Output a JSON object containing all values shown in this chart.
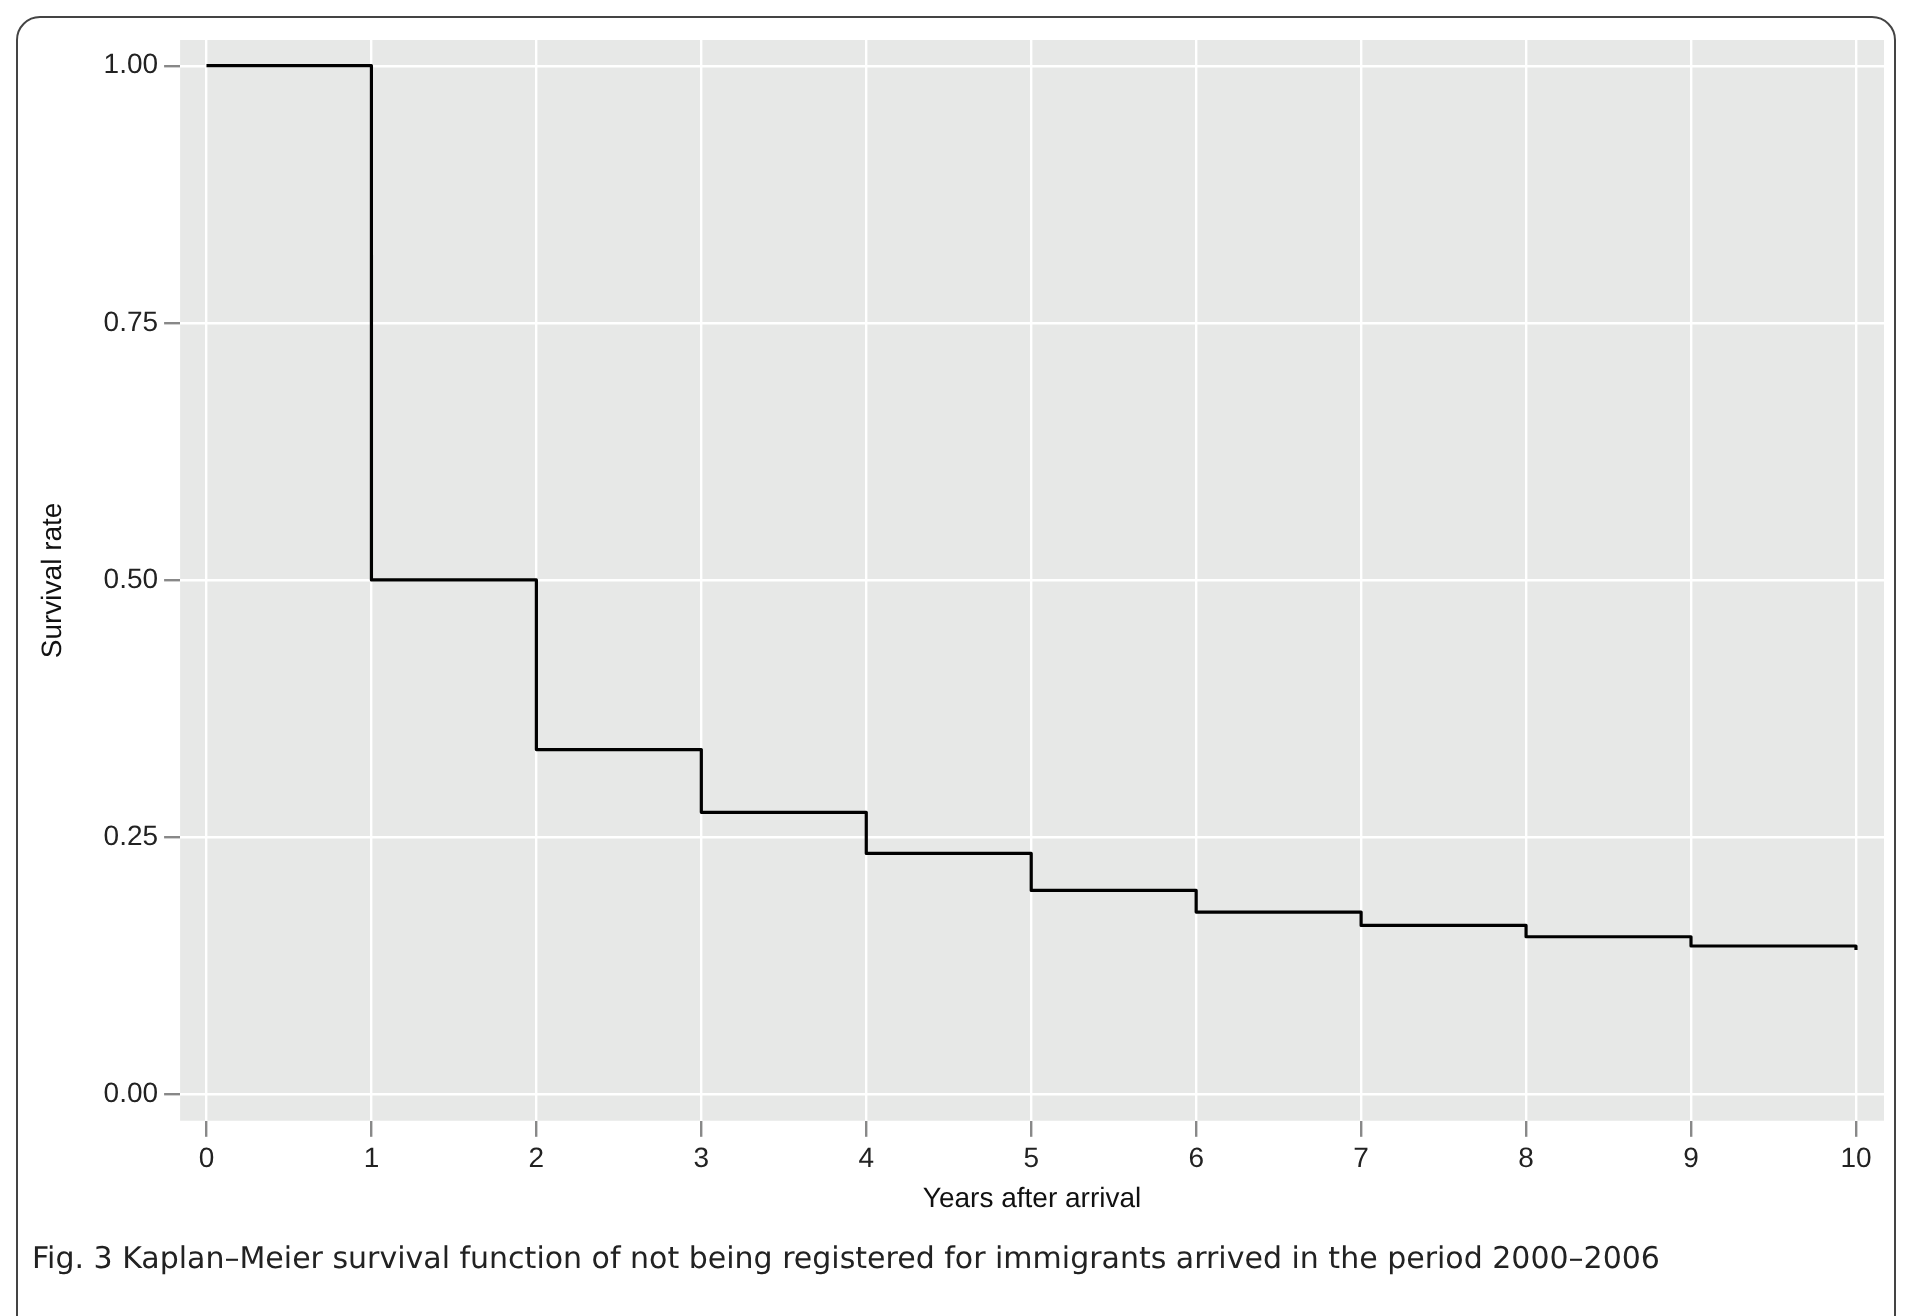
{
  "chart_data": {
    "type": "step",
    "xlabel": "Years after arrival",
    "ylabel": "Survival rate",
    "x": [
      0,
      1,
      2,
      3,
      4,
      5,
      6,
      7,
      8,
      9,
      10
    ],
    "series": [
      {
        "color": "#000000",
        "values": [
          1,
          0.5,
          0.335,
          0.274,
          0.234,
          0.198,
          0.177,
          0.164,
          0.153,
          0.144,
          0.14
        ]
      }
    ],
    "xlim": [
      -0.16,
      10.17
    ],
    "xticks": [
      0,
      1,
      2,
      3,
      4,
      5,
      6,
      7,
      8,
      9,
      10
    ],
    "ylim": [
      -0.026,
      1.025
    ],
    "yticks": [
      {
        "value": 0,
        "label": "0.00"
      },
      {
        "value": 0.25,
        "label": "0.25"
      },
      {
        "value": 0.5,
        "label": "0.50"
      },
      {
        "value": 0.75,
        "label": "0.75"
      },
      {
        "value": 1,
        "label": "1.00"
      }
    ],
    "grid": true,
    "legend": false,
    "marker": "none",
    "line_style": "solid",
    "annotations": [
      "Fig. 3  Kaplan–Meier survival function of not being registered for immigrants arrived in the period 2000–2006"
    ]
  }
}
